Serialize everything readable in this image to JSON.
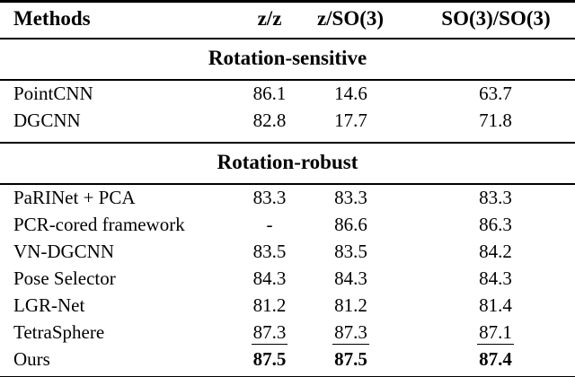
{
  "table": {
    "columns": [
      "Methods",
      "z/z",
      "z/SO(3)",
      "SO(3)/SO(3)"
    ],
    "sections": [
      {
        "label": "Rotation-sensitive",
        "rows": [
          {
            "method": "PointCNN",
            "values": [
              "86.1",
              "14.6",
              "63.7"
            ]
          },
          {
            "method": "DGCNN",
            "values": [
              "82.8",
              "17.7",
              "71.8"
            ]
          }
        ]
      },
      {
        "label": "Rotation-robust",
        "rows": [
          {
            "method": "PaRINet + PCA",
            "values": [
              "83.3",
              "83.3",
              "83.3"
            ]
          },
          {
            "method": "PCR-cored framework",
            "values": [
              "-",
              "86.6",
              "86.3"
            ]
          },
          {
            "method": "VN-DGCNN",
            "values": [
              "83.5",
              "83.5",
              "84.2"
            ]
          },
          {
            "method": "Pose Selector",
            "values": [
              "84.3",
              "84.3",
              "84.3"
            ]
          },
          {
            "method": "LGR-Net",
            "values": [
              "81.2",
              "81.2",
              "81.4"
            ]
          },
          {
            "method": "TetraSphere",
            "values": [
              "87.3",
              "87.3",
              "87.1"
            ],
            "emphasis": "underline"
          },
          {
            "method": "Ours",
            "values": [
              "87.5",
              "87.5",
              "87.4"
            ],
            "emphasis": "bold"
          }
        ]
      }
    ],
    "colors": {
      "text": "#000000",
      "background": "#ffffff",
      "rule": "#000000"
    }
  }
}
